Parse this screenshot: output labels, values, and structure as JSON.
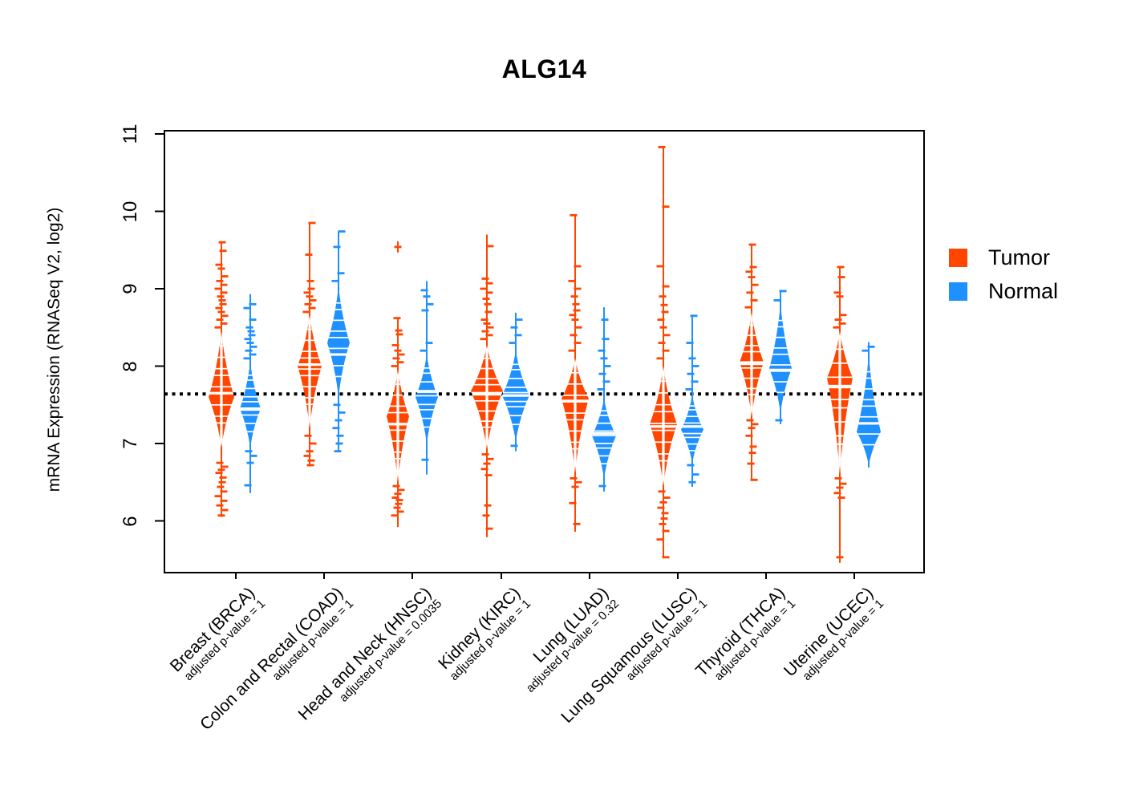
{
  "title": "ALG14",
  "y_axis": {
    "label": "mRNA Expression (RNASeq V2, log2)",
    "ticks": [
      6,
      7,
      8,
      9,
      10,
      11
    ],
    "range": [
      5.33,
      11.04
    ]
  },
  "reference_line": {
    "value": 7.64,
    "style": "dotted",
    "color": "#000000"
  },
  "legend": {
    "position": "right",
    "items": [
      {
        "label": "Tumor",
        "color": "#FF4500"
      },
      {
        "label": "Normal",
        "color": "#1E90FF"
      }
    ]
  },
  "chart_data": {
    "type": "violin-strip",
    "x_tick_note": "each category shows Tumor (left, orange) and Normal (right, blue) distributions of mRNA expression",
    "categories": [
      {
        "label": "Breast (BRCA)",
        "pvalue_label": "adjusted p-value = 1",
        "tumor": {
          "median": 7.65,
          "body": [
            6.95,
            8.45
          ],
          "widest": 7.6,
          "spread": 16,
          "whisker": [
            6.05,
            9.6
          ],
          "outliers_above": [
            8.5,
            8.55,
            8.6,
            8.65,
            8.7,
            8.75,
            8.8,
            8.85,
            8.9,
            8.95,
            9.0,
            9.05,
            9.1,
            9.16,
            9.26,
            9.31,
            9.49,
            9.6
          ],
          "outliers_below": [
            6.75,
            6.7,
            6.66,
            6.62,
            6.56,
            6.5,
            6.44,
            6.38,
            6.32,
            6.26,
            6.2,
            6.14,
            6.07
          ]
        },
        "normal": {
          "median": 7.45,
          "body": [
            6.95,
            8.05
          ],
          "widest": 7.45,
          "spread": 13,
          "whisker": [
            6.36,
            8.93
          ],
          "outliers_above": [
            8.1,
            8.15,
            8.2,
            8.25,
            8.3,
            8.35,
            8.4,
            8.45,
            8.5,
            8.6,
            8.75,
            8.8
          ],
          "outliers_below": [
            6.9,
            6.84,
            6.75,
            6.46
          ]
        }
      },
      {
        "label": "Colon and Rectal (COAD)",
        "pvalue_label": "adjusted p-value = 1",
        "tumor": {
          "median": 8.02,
          "body": [
            7.2,
            8.66
          ],
          "widest": 8.0,
          "spread": 15,
          "whisker": [
            6.72,
            9.85
          ],
          "outliers_above": [
            8.7,
            8.75,
            8.8,
            8.85,
            8.9,
            8.95,
            9.0,
            9.1,
            9.44,
            9.85
          ],
          "outliers_below": [
            7.1,
            7.0,
            6.9,
            6.84,
            6.78,
            6.72
          ]
        },
        "normal": {
          "median": 8.15,
          "body": [
            7.6,
            9.03
          ],
          "widest": 8.3,
          "spread": 14,
          "whisker": [
            6.9,
            9.74
          ],
          "outliers_above": [
            9.1,
            9.2,
            9.54,
            9.74
          ],
          "outliers_below": [
            7.5,
            7.4,
            7.3,
            7.2,
            7.1,
            7.0,
            6.9
          ]
        }
      },
      {
        "label": "Head and Neck (HNSC)",
        "pvalue_label": "adjusted p-value = 0.0035",
        "tumor": {
          "median": 7.25,
          "body": [
            6.5,
            7.95
          ],
          "widest": 7.35,
          "spread": 14,
          "whisker": [
            5.92,
            8.62
          ],
          "outliers_above": [
            8.0,
            8.05,
            8.1,
            8.15,
            8.2,
            8.27,
            8.41,
            8.46,
            8.62
          ],
          "outliers_below": [
            6.45,
            6.4,
            6.35,
            6.3,
            6.27,
            6.22,
            6.17,
            6.12,
            6.07
          ],
          "plus_markers": [
            9.54
          ]
        },
        "normal": {
          "median": 7.67,
          "body": [
            7.0,
            8.15
          ],
          "widest": 7.6,
          "spread": 14,
          "whisker": [
            6.6,
            9.1
          ],
          "outliers_above": [
            8.2,
            8.3,
            8.72,
            8.8,
            8.9,
            8.98
          ],
          "outliers_below": [
            6.79
          ]
        }
      },
      {
        "label": "Kidney (KIRC)",
        "pvalue_label": "adjusted p-value = 1",
        "tumor": {
          "median": 7.65,
          "body": [
            6.93,
            8.27
          ],
          "widest": 7.68,
          "spread": 20,
          "whisker": [
            5.79,
            9.7
          ],
          "outliers_above": [
            8.35,
            8.4,
            8.45,
            8.5,
            8.55,
            8.6,
            8.7,
            8.8,
            8.87,
            8.95,
            9.0,
            9.07,
            9.13,
            9.55
          ],
          "outliers_below": [
            6.86,
            6.8,
            6.74,
            6.67,
            6.59,
            6.2,
            6.07,
            5.9
          ]
        },
        "normal": {
          "median": 7.62,
          "body": [
            7.03,
            8.2
          ],
          "widest": 7.62,
          "spread": 17,
          "whisker": [
            6.9,
            8.69
          ],
          "outliers_above": [
            8.3,
            8.4,
            8.5,
            8.6
          ],
          "outliers_below": [
            6.97
          ]
        }
      },
      {
        "label": "Lung (LUAD)",
        "pvalue_label": "adjusted p-value = 0.32",
        "tumor": {
          "median": 7.55,
          "body": [
            6.62,
            8.1
          ],
          "widest": 7.58,
          "spread": 17,
          "whisker": [
            5.86,
            9.95
          ],
          "outliers_above": [
            8.2,
            8.3,
            8.4,
            8.5,
            8.6,
            8.66,
            8.72,
            8.8,
            8.9,
            9.0,
            9.1,
            9.29,
            9.95
          ],
          "outliers_below": [
            6.55,
            6.5,
            6.44,
            6.23,
            5.96
          ]
        },
        "normal": {
          "median": 7.13,
          "body": [
            6.55,
            7.58
          ],
          "widest": 7.1,
          "spread": 15,
          "whisker": [
            6.38,
            8.76
          ],
          "outliers_above": [
            7.7,
            7.8,
            7.9,
            8.0,
            8.1,
            8.2,
            8.35,
            8.6
          ],
          "outliers_below": [
            6.45
          ]
        }
      },
      {
        "label": "Lung Squamous (LUSC)",
        "pvalue_label": "adjusted p-value = 1",
        "tumor": {
          "median": 7.22,
          "body": [
            6.45,
            8.0
          ],
          "widest": 7.25,
          "spread": 17,
          "whisker": [
            5.53,
            10.83
          ],
          "outliers_above": [
            8.1,
            8.2,
            8.3,
            8.4,
            8.5,
            8.6,
            8.7,
            8.79,
            8.9,
            9.03,
            9.29,
            10.06,
            10.83
          ],
          "outliers_below": [
            6.38,
            6.3,
            6.24,
            6.17,
            6.1,
            6.03,
            5.96,
            5.87,
            5.76,
            5.53
          ]
        },
        "normal": {
          "median": 7.22,
          "body": [
            6.75,
            7.62
          ],
          "widest": 7.18,
          "spread": 14,
          "whisker": [
            6.44,
            8.65
          ],
          "outliers_above": [
            7.7,
            7.8,
            7.9,
            8.0,
            8.1,
            8.3,
            8.65
          ],
          "outliers_below": [
            6.72,
            6.6,
            6.5
          ]
        }
      },
      {
        "label": "Thyroid (THCA)",
        "pvalue_label": "adjusted p-value = 1",
        "tumor": {
          "median": 8.03,
          "body": [
            7.35,
            8.7
          ],
          "widest": 8.05,
          "spread": 15,
          "whisker": [
            6.53,
            9.57
          ],
          "outliers_above": [
            8.76,
            8.85,
            8.95,
            9.05,
            9.15,
            9.22,
            9.28,
            9.57
          ],
          "outliers_below": [
            7.3,
            7.25,
            7.2,
            7.1,
            6.96,
            6.88,
            6.74,
            6.53
          ]
        },
        "normal": {
          "median": 7.95,
          "body": [
            7.4,
            8.8
          ],
          "widest": 7.97,
          "spread": 14,
          "whisker": [
            7.25,
            8.97
          ],
          "outliers_above": [
            8.85,
            8.97
          ],
          "outliers_below": [
            7.3
          ]
        }
      },
      {
        "label": "Uterine (UCEC)",
        "pvalue_label": "adjusted p-value = 1",
        "tumor": {
          "median": 7.73,
          "body": [
            6.6,
            8.45
          ],
          "widest": 7.85,
          "spread": 16,
          "whisker": [
            5.53,
            9.28
          ],
          "outliers_above": [
            8.5,
            8.55,
            8.6,
            8.66,
            8.9,
            8.95,
            9.15,
            9.28
          ],
          "outliers_below": [
            6.55,
            6.48,
            6.43,
            6.36,
            6.3
          ],
          "plus_markers": [
            5.53
          ]
        },
        "normal": {
          "median": 7.26,
          "body": [
            6.72,
            8.14
          ],
          "widest": 7.15,
          "spread": 15,
          "whisker": [
            6.69,
            8.31
          ],
          "outliers_above": [
            8.2,
            8.25
          ],
          "outliers_below": []
        }
      }
    ]
  }
}
